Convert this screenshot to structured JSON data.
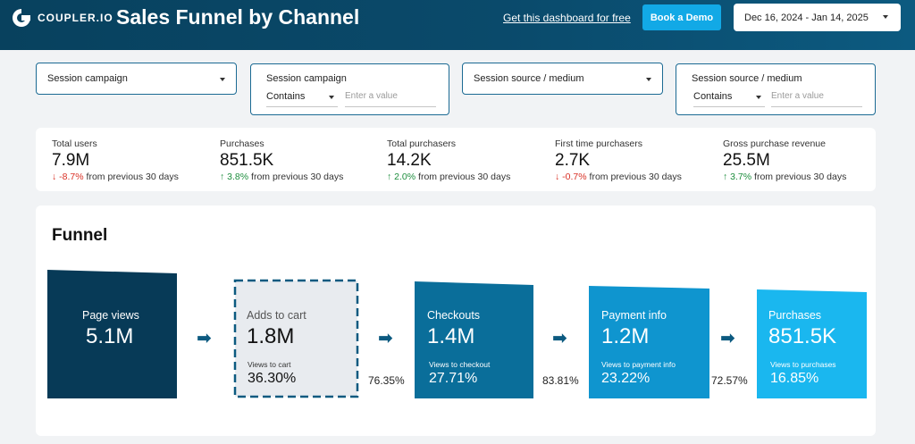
{
  "header": {
    "brand": "COUPLER.IO",
    "title": "Sales Funnel by Channel",
    "free_link": "Get this dashboard for free",
    "demo_button": "Book a Demo",
    "date_range": "Dec 16, 2024 - Jan 14, 2025",
    "colors": {
      "background": "#0a4a6b",
      "accent": "#12a9e6"
    }
  },
  "filters": [
    {
      "label": "Session campaign"
    },
    {
      "label": "Session campaign",
      "operator": "Contains",
      "placeholder": "Enter a value"
    },
    {
      "label": "Session source / medium"
    },
    {
      "label": "Session source / medium",
      "operator": "Contains",
      "placeholder": "Enter a value"
    }
  ],
  "kpis": [
    {
      "label": "Total users",
      "value": "7.9M",
      "direction": "down",
      "delta": "-8.7%",
      "suffix": "from previous 30 days"
    },
    {
      "label": "Purchases",
      "value": "851.5K",
      "direction": "up",
      "delta": "3.8%",
      "suffix": "from previous 30 days"
    },
    {
      "label": "Total purchasers",
      "value": "14.2K",
      "direction": "up",
      "delta": "2.0%",
      "suffix": "from previous 30 days"
    },
    {
      "label": "First time purchasers",
      "value": "2.7K",
      "direction": "down",
      "delta": "-0.7%",
      "suffix": "from previous 30 days"
    },
    {
      "label": "Gross purchase revenue",
      "value": "25.5M",
      "direction": "up",
      "delta": "3.7%",
      "suffix": "from previous 30 days"
    }
  ],
  "funnel": {
    "title": "Funnel",
    "stages": [
      {
        "label": "Page views",
        "value": "5.1M",
        "color": "#073a57"
      },
      {
        "label": "Adds to cart",
        "value": "1.8M",
        "sub_label": "Views to cart",
        "sub_value": "36.30%",
        "color": "#e8ebef"
      },
      {
        "label": "Checkouts",
        "value": "1.4M",
        "sub_label": "Views to checkout",
        "sub_value": "27.71%",
        "color": "#0a6e9a"
      },
      {
        "label": "Payment info",
        "value": "1.2M",
        "sub_label": "Views to payment info",
        "sub_value": "23.22%",
        "color": "#0f95cf"
      },
      {
        "label": "Purchases",
        "value": "851.5K",
        "sub_label": "Views to purchases",
        "sub_value": "16.85%",
        "color": "#1ab7ef"
      }
    ],
    "conversions": [
      "76.35%",
      "83.81%",
      "72.57%"
    ]
  }
}
